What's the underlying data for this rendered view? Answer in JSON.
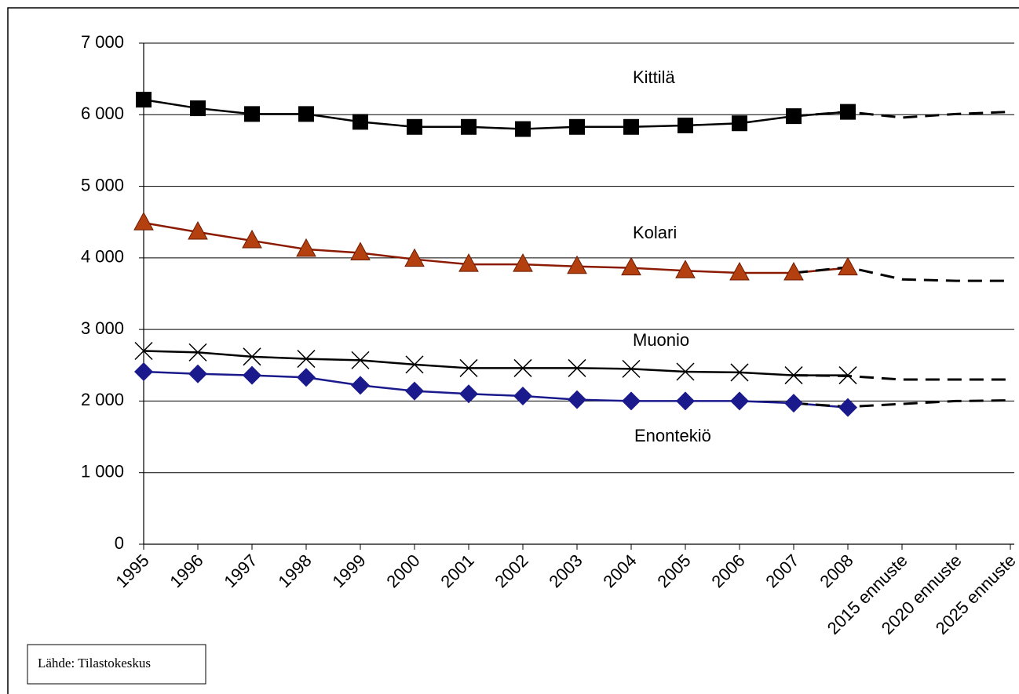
{
  "chart_data": {
    "type": "line",
    "categories": [
      "1995",
      "1996",
      "1997",
      "1998",
      "1999",
      "2000",
      "2001",
      "2002",
      "2003",
      "2004",
      "2005",
      "2006",
      "2007",
      "2008",
      "2015 ennuste",
      "2020 ennuste",
      "2025 ennuste"
    ],
    "ylim": [
      0,
      7000
    ],
    "yticks": [
      0,
      {
        "value": 1000,
        "label": "1 000"
      },
      {
        "value": 2000,
        "label": "2 000"
      },
      {
        "value": 3000,
        "label": "3 000"
      },
      {
        "value": 4000,
        "label": "4 000"
      },
      {
        "value": 5000,
        "label": "5 000"
      },
      {
        "value": 6000,
        "label": "6 000"
      },
      {
        "value": 7000,
        "label": "7 000"
      }
    ],
    "grid": true,
    "series": [
      {
        "name": "Kittilä",
        "color": "#000000",
        "marker": "square",
        "marker_color": "#000000",
        "values": [
          6210,
          6090,
          6010,
          6010,
          5900,
          5830,
          5830,
          5800,
          5830,
          5830,
          5850,
          5880,
          5980,
          6040,
          null,
          null,
          null
        ]
      },
      {
        "name": "Kolari",
        "color": "#8b1a00",
        "marker": "triangle",
        "marker_color": "#b5400f",
        "values": [
          4490,
          4360,
          4240,
          4120,
          4070,
          3980,
          3910,
          3910,
          3880,
          3860,
          3820,
          3790,
          3790,
          3860,
          null,
          null,
          null
        ]
      },
      {
        "name": "Muonio",
        "color": "#000000",
        "marker": "cross",
        "marker_color": "#000000",
        "values": [
          2700,
          2680,
          2620,
          2590,
          2570,
          2510,
          2460,
          2460,
          2460,
          2450,
          2410,
          2400,
          2360,
          2360,
          null,
          null,
          null
        ]
      },
      {
        "name": "Enontekiö",
        "color": "#1a1a8c",
        "marker": "diamond",
        "marker_color": "#1a1a8c",
        "values": [
          2410,
          2380,
          2360,
          2330,
          2220,
          2140,
          2100,
          2070,
          2020,
          2000,
          2000,
          2000,
          1970,
          1910,
          null,
          null,
          null
        ]
      },
      {
        "color": "#000000",
        "dashed": true,
        "values": [
          null,
          null,
          null,
          null,
          null,
          null,
          null,
          null,
          null,
          null,
          null,
          null,
          5980,
          6040,
          5960,
          6010,
          6040
        ]
      },
      {
        "color": "#000000",
        "dashed": true,
        "values": [
          null,
          null,
          null,
          null,
          null,
          null,
          null,
          null,
          null,
          null,
          null,
          null,
          3790,
          3870,
          3700,
          3680,
          3680
        ]
      },
      {
        "color": "#000000",
        "dashed": true,
        "values": [
          null,
          null,
          null,
          null,
          null,
          null,
          null,
          null,
          null,
          null,
          null,
          null,
          2360,
          2350,
          2300,
          2300,
          2300
        ]
      },
      {
        "color": "#000000",
        "dashed": true,
        "values": [
          null,
          null,
          null,
          null,
          null,
          null,
          null,
          null,
          null,
          null,
          null,
          null,
          1970,
          1920,
          1960,
          2000,
          2010
        ]
      }
    ],
    "source": "Lähde: Tilastokeskus"
  }
}
